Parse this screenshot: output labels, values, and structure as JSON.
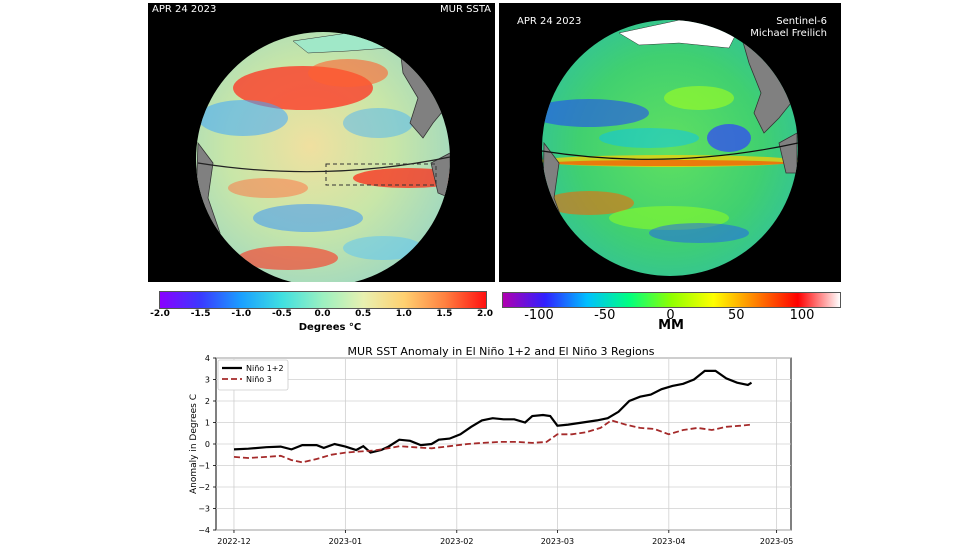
{
  "left_panel": {
    "date": "APR 24 2023",
    "product": "MUR SSTA",
    "colorbar": {
      "ticks": [
        "-2.0",
        "-1.5",
        "-1.0",
        "-0.5",
        "0.0",
        "0.5",
        "1.0",
        "1.5",
        "2.0"
      ],
      "label": "Degrees °C",
      "colors": [
        "#8a00ff",
        "#3a3aff",
        "#1aa0ff",
        "#40e0e0",
        "#9cf0c0",
        "#e8f0b0",
        "#ffd070",
        "#ff8040",
        "#ff1010"
      ]
    }
  },
  "right_panel": {
    "date": "APR 24 2023",
    "mission": "Sentinel-6",
    "mission_sub": "Michael Freilich",
    "colorbar": {
      "ticks": [
        "-100",
        "-50",
        "0",
        "50",
        "100"
      ],
      "label": "MM",
      "colors": [
        "#b000b0",
        "#3020ff",
        "#00c0ff",
        "#00ff80",
        "#90ff00",
        "#ffff00",
        "#ff8000",
        "#ff0000",
        "#ffffff"
      ]
    }
  },
  "chart_data": {
    "type": "line",
    "title": "MUR SST Anomaly in El Niño 1+2 and El Niño 3 Regions",
    "xlabel": "",
    "ylabel": "Anomaly in Degrees C",
    "ylim": [
      -4,
      4
    ],
    "yticks": [
      "4",
      "3",
      "2",
      "1",
      "0",
      "−1",
      "−2",
      "−3",
      "−4"
    ],
    "xlim": [
      "2022-11-26",
      "2023-05-05"
    ],
    "xticks": [
      {
        "date": "2022-12-01",
        "label": "2022-12"
      },
      {
        "date": "2023-01-01",
        "label": "2023-01"
      },
      {
        "date": "2023-02-01",
        "label": "2023-02"
      },
      {
        "date": "2023-03-01",
        "label": "2023-03"
      },
      {
        "date": "2023-04-01",
        "label": "2023-04"
      },
      {
        "date": "2023-05-01",
        "label": "2023-05"
      }
    ],
    "grid": true,
    "legend": "top-left",
    "series": [
      {
        "name": "Niño 1+2",
        "color": "#000000",
        "style": "solid",
        "points": [
          [
            "2022-12-01",
            -0.25
          ],
          [
            "2022-12-05",
            -0.22
          ],
          [
            "2022-12-10",
            -0.15
          ],
          [
            "2022-12-14",
            -0.12
          ],
          [
            "2022-12-17",
            -0.25
          ],
          [
            "2022-12-20",
            -0.05
          ],
          [
            "2022-12-24",
            -0.05
          ],
          [
            "2022-12-26",
            -0.18
          ],
          [
            "2022-12-29",
            0.0
          ],
          [
            "2023-01-01",
            -0.12
          ],
          [
            "2023-01-04",
            -0.28
          ],
          [
            "2023-01-06",
            -0.1
          ],
          [
            "2023-01-08",
            -0.4
          ],
          [
            "2023-01-11",
            -0.28
          ],
          [
            "2023-01-13",
            -0.12
          ],
          [
            "2023-01-16",
            0.2
          ],
          [
            "2023-01-19",
            0.15
          ],
          [
            "2023-01-22",
            -0.05
          ],
          [
            "2023-01-25",
            0.0
          ],
          [
            "2023-01-27",
            0.2
          ],
          [
            "2023-01-30",
            0.25
          ],
          [
            "2023-02-02",
            0.45
          ],
          [
            "2023-02-05",
            0.8
          ],
          [
            "2023-02-08",
            1.1
          ],
          [
            "2023-02-11",
            1.2
          ],
          [
            "2023-02-14",
            1.15
          ],
          [
            "2023-02-17",
            1.15
          ],
          [
            "2023-02-20",
            1.0
          ],
          [
            "2023-02-22",
            1.3
          ],
          [
            "2023-02-25",
            1.35
          ],
          [
            "2023-02-27",
            1.3
          ],
          [
            "2023-03-01",
            0.85
          ],
          [
            "2023-03-04",
            0.9
          ],
          [
            "2023-03-08",
            1.0
          ],
          [
            "2023-03-12",
            1.1
          ],
          [
            "2023-03-15",
            1.2
          ],
          [
            "2023-03-18",
            1.5
          ],
          [
            "2023-03-21",
            2.0
          ],
          [
            "2023-03-24",
            2.2
          ],
          [
            "2023-03-27",
            2.3
          ],
          [
            "2023-03-30",
            2.55
          ],
          [
            "2023-04-02",
            2.7
          ],
          [
            "2023-04-05",
            2.8
          ],
          [
            "2023-04-08",
            3.0
          ],
          [
            "2023-04-11",
            3.4
          ],
          [
            "2023-04-14",
            3.4
          ],
          [
            "2023-04-17",
            3.05
          ],
          [
            "2023-04-20",
            2.85
          ],
          [
            "2023-04-23",
            2.75
          ],
          [
            "2023-04-24",
            2.85
          ]
        ]
      },
      {
        "name": "Niño 3",
        "color": "#a52a2a",
        "style": "dashed",
        "points": [
          [
            "2022-12-01",
            -0.6
          ],
          [
            "2022-12-05",
            -0.65
          ],
          [
            "2022-12-10",
            -0.6
          ],
          [
            "2022-12-14",
            -0.55
          ],
          [
            "2022-12-17",
            -0.75
          ],
          [
            "2022-12-20",
            -0.85
          ],
          [
            "2022-12-24",
            -0.7
          ],
          [
            "2022-12-28",
            -0.5
          ],
          [
            "2023-01-01",
            -0.4
          ],
          [
            "2023-01-05",
            -0.35
          ],
          [
            "2023-01-09",
            -0.3
          ],
          [
            "2023-01-13",
            -0.2
          ],
          [
            "2023-01-16",
            -0.1
          ],
          [
            "2023-01-20",
            -0.15
          ],
          [
            "2023-01-25",
            -0.2
          ],
          [
            "2023-01-30",
            -0.1
          ],
          [
            "2023-02-04",
            0.0
          ],
          [
            "2023-02-08",
            0.05
          ],
          [
            "2023-02-13",
            0.1
          ],
          [
            "2023-02-18",
            0.1
          ],
          [
            "2023-02-22",
            0.05
          ],
          [
            "2023-02-26",
            0.1
          ],
          [
            "2023-03-01",
            0.45
          ],
          [
            "2023-03-05",
            0.45
          ],
          [
            "2023-03-09",
            0.55
          ],
          [
            "2023-03-13",
            0.75
          ],
          [
            "2023-03-16",
            1.1
          ],
          [
            "2023-03-20",
            0.9
          ],
          [
            "2023-03-24",
            0.75
          ],
          [
            "2023-03-28",
            0.7
          ],
          [
            "2023-04-01",
            0.45
          ],
          [
            "2023-04-05",
            0.65
          ],
          [
            "2023-04-09",
            0.75
          ],
          [
            "2023-04-13",
            0.65
          ],
          [
            "2023-04-17",
            0.8
          ],
          [
            "2023-04-21",
            0.85
          ],
          [
            "2023-04-24",
            0.9
          ]
        ]
      }
    ]
  }
}
